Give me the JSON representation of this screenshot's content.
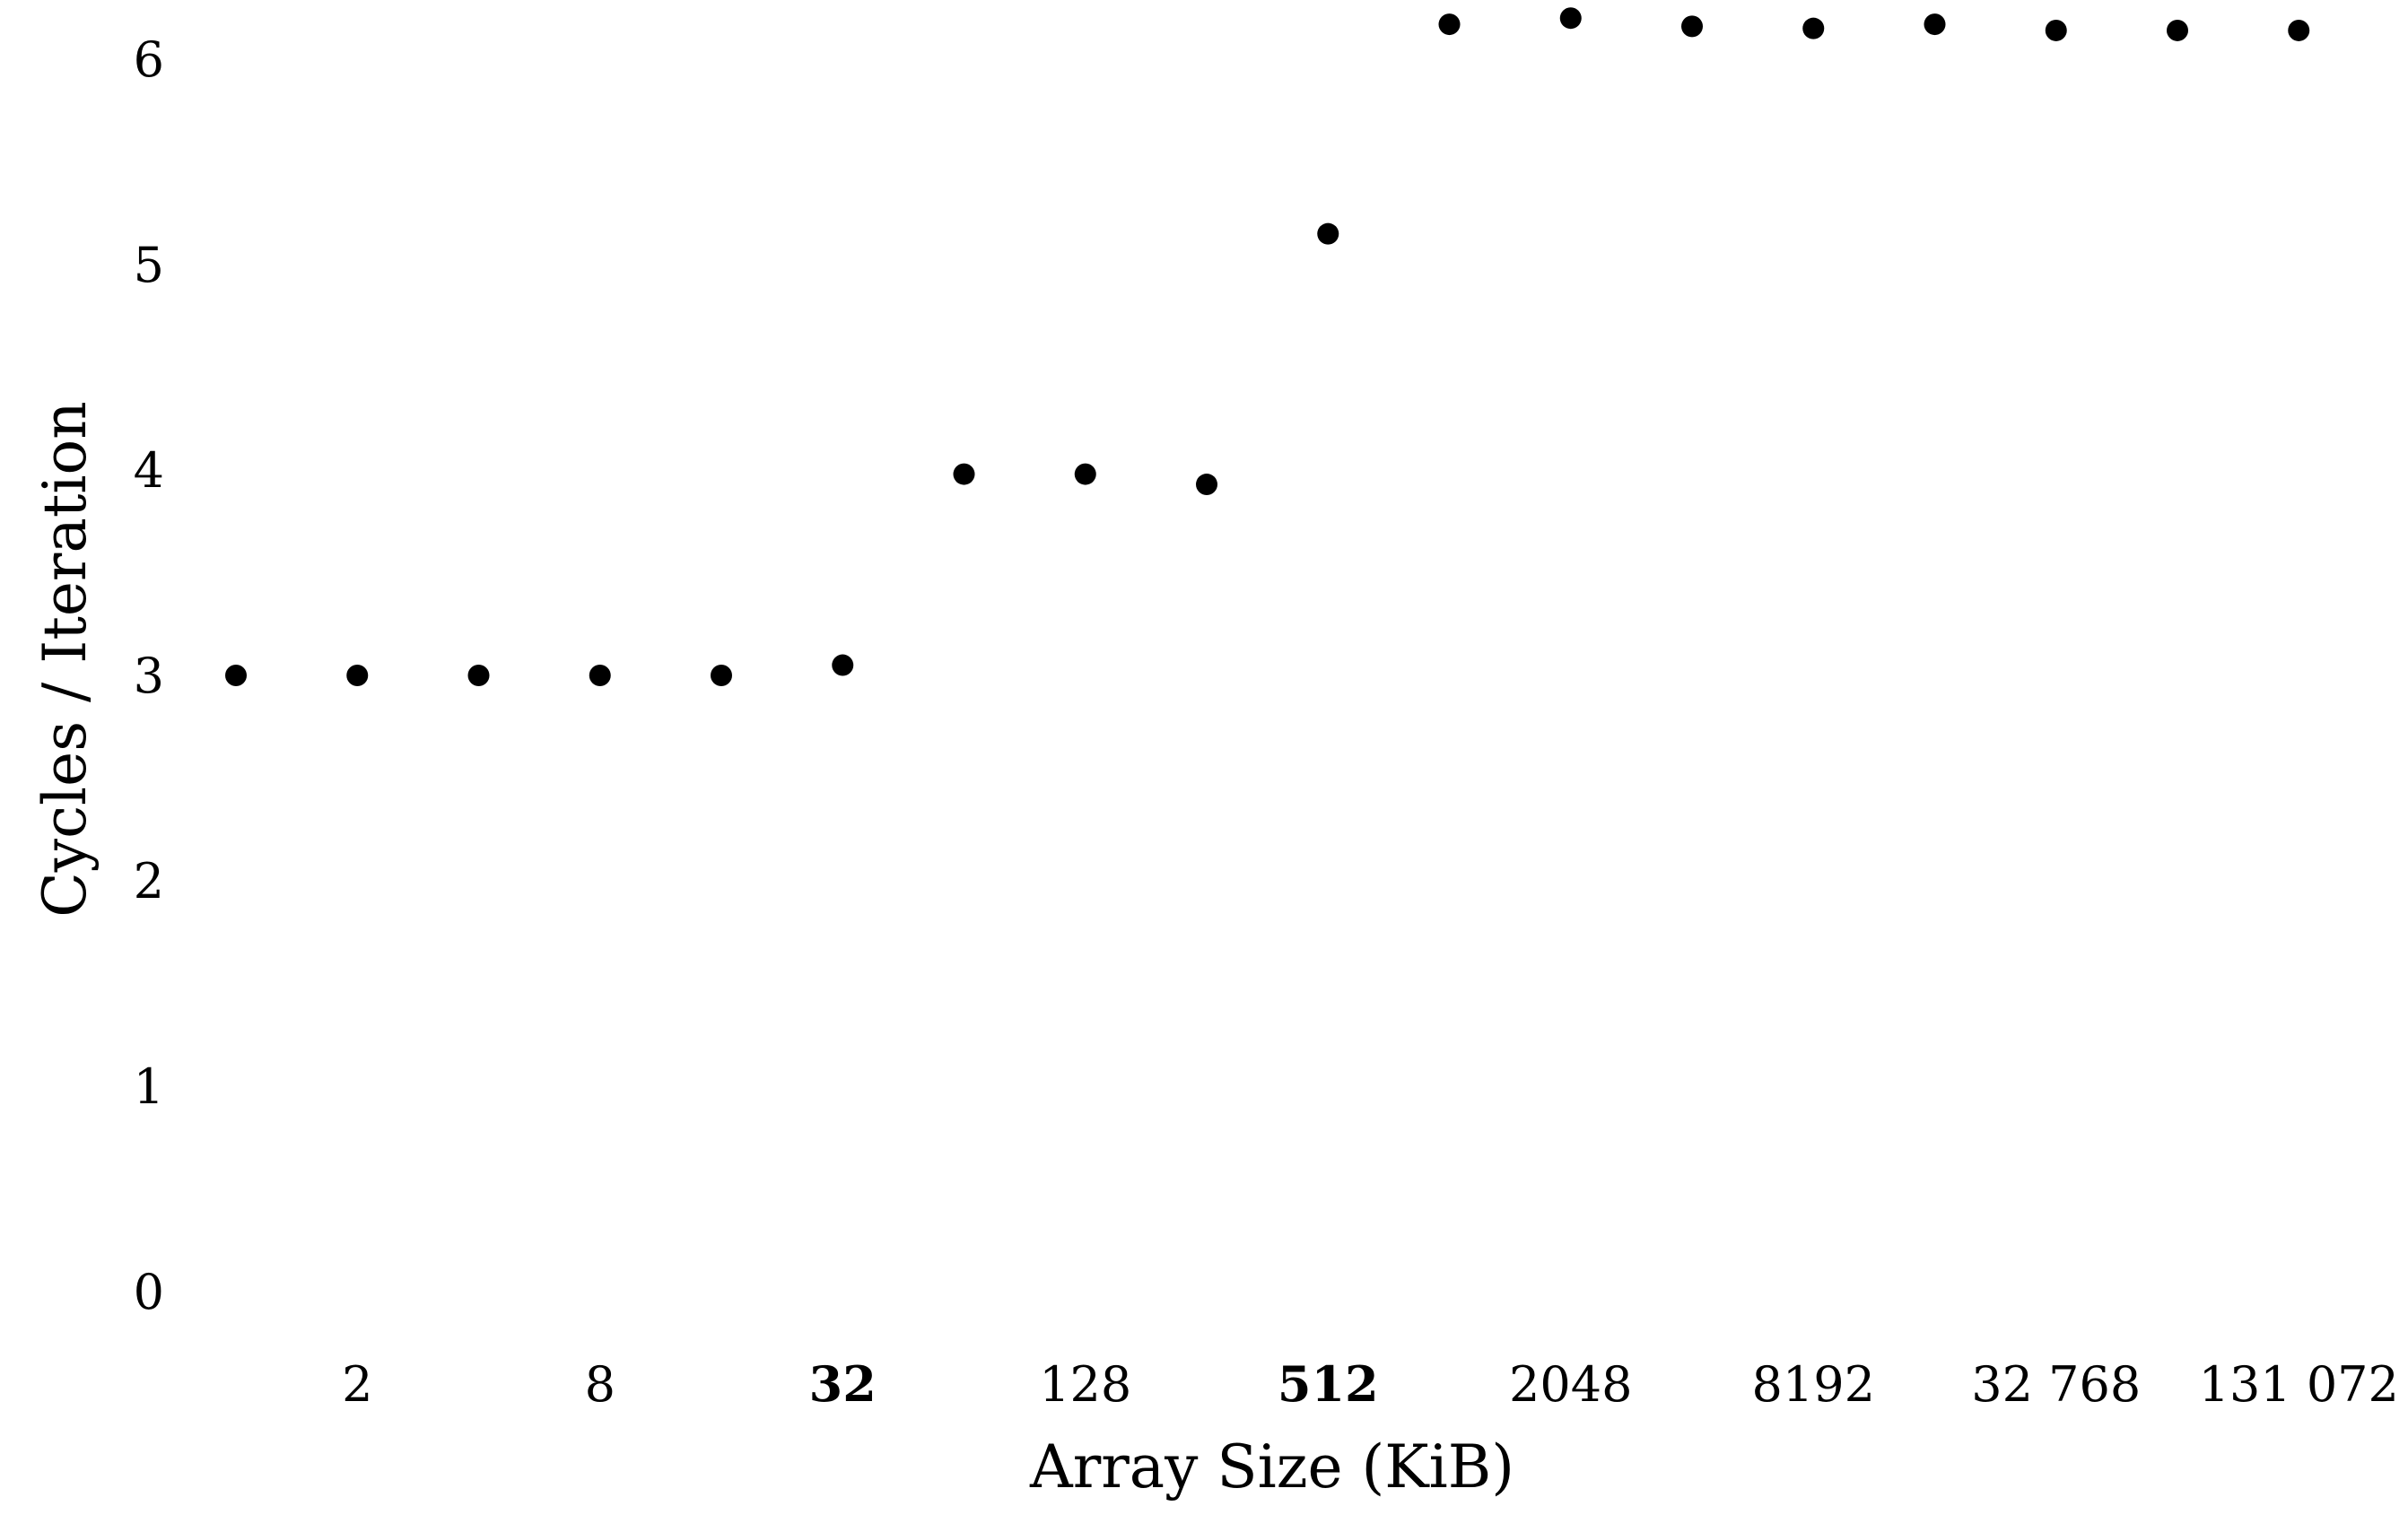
{
  "chart_data": {
    "type": "scatter",
    "title": "",
    "xlabel": "Array Size (KiB)",
    "ylabel": "Cycles / Iteration",
    "x_scale": "log2",
    "x_ticks": [
      {
        "value": 2,
        "label": "2",
        "bold": false
      },
      {
        "value": 8,
        "label": "8",
        "bold": false
      },
      {
        "value": 32,
        "label": "32",
        "bold": true
      },
      {
        "value": 128,
        "label": "128",
        "bold": false
      },
      {
        "value": 512,
        "label": "512",
        "bold": true
      },
      {
        "value": 2048,
        "label": "2048",
        "bold": false
      },
      {
        "value": 8192,
        "label": "8192",
        "bold": false
      },
      {
        "value": 32768,
        "label": "32 768",
        "bold": false
      },
      {
        "value": 131072,
        "label": "131 072",
        "bold": false
      }
    ],
    "y_ticks": [
      {
        "value": 0,
        "label": "0"
      },
      {
        "value": 1,
        "label": "1"
      },
      {
        "value": 2,
        "label": "2"
      },
      {
        "value": 3,
        "label": "3"
      },
      {
        "value": 4,
        "label": "4"
      },
      {
        "value": 5,
        "label": "5"
      },
      {
        "value": 6,
        "label": "6"
      }
    ],
    "ylim": [
      0,
      6.2
    ],
    "grid": false,
    "legend": "none",
    "marker_color": "#000000",
    "x": [
      1,
      2,
      4,
      8,
      16,
      32,
      64,
      128,
      256,
      512,
      1024,
      2048,
      4096,
      8192,
      16384,
      32768,
      65536,
      131072
    ],
    "y": [
      3.0,
      3.0,
      3.0,
      3.0,
      3.0,
      3.05,
      3.98,
      3.98,
      3.93,
      5.15,
      6.17,
      6.2,
      6.16,
      6.15,
      6.17,
      6.14,
      6.14,
      6.14
    ]
  }
}
